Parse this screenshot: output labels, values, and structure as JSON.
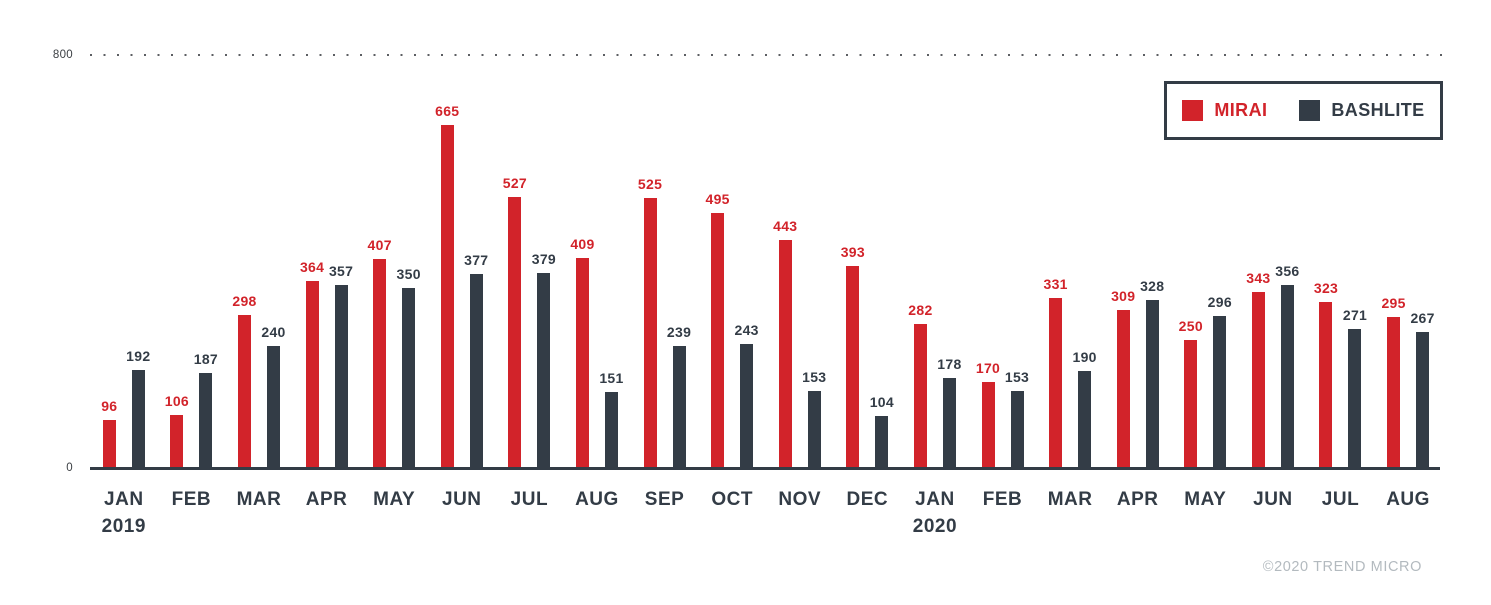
{
  "chart_data": {
    "type": "bar",
    "title": "",
    "xlabel": "",
    "ylabel": "",
    "categories": [
      "JAN",
      "FEB",
      "MAR",
      "APR",
      "MAY",
      "JUN",
      "JUL",
      "AUG",
      "SEP",
      "OCT",
      "NOV",
      "DEC",
      "JAN",
      "FEB",
      "MAR",
      "APR",
      "MAY",
      "JUN",
      "JUL",
      "AUG"
    ],
    "year_labels": {
      "0": "2019",
      "12": "2020"
    },
    "series": [
      {
        "name": "MIRAI",
        "color": "#d2232a",
        "values": [
          96,
          106,
          298,
          364,
          407,
          665,
          527,
          409,
          525,
          495,
          443,
          393,
          282,
          170,
          331,
          309,
          250,
          343,
          323,
          295
        ]
      },
      {
        "name": "BASHLITE",
        "color": "#333c46",
        "values": [
          192,
          187,
          240,
          357,
          350,
          377,
          379,
          151,
          239,
          243,
          153,
          104,
          178,
          153,
          190,
          328,
          296,
          356,
          271,
          267
        ]
      }
    ],
    "ylim": [
      0,
      800
    ],
    "ytick_labels": [
      "800",
      "0"
    ],
    "grid": "single dotted horizontal gridline at y=800",
    "legend_position": "top-right"
  },
  "footer": {
    "copyright": "©2020 TREND MICRO"
  }
}
